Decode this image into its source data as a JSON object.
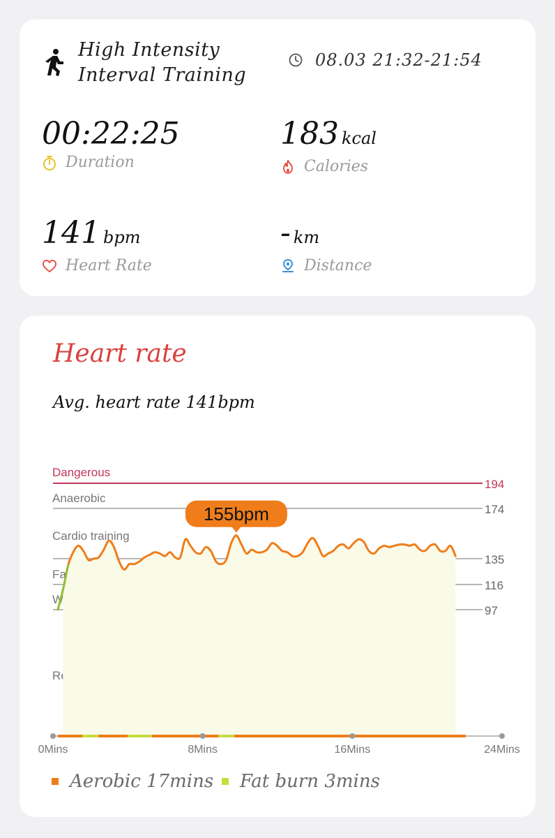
{
  "activity": {
    "title_line1": "High Intensity",
    "title_line2": "Interval Training",
    "time_range": "08.03 21:32-21:54"
  },
  "metrics": {
    "duration": {
      "value": "00:22:25",
      "label": "Duration"
    },
    "calories": {
      "value": "183",
      "unit": "kcal",
      "label": "Calories"
    },
    "heart_rate": {
      "value": "141",
      "unit": "bpm",
      "label": "Heart Rate"
    },
    "distance": {
      "value": "-",
      "unit": "km",
      "label": "Distance"
    }
  },
  "heart_rate_card": {
    "title": "Heart rate",
    "average_text": "Avg. heart rate 141bpm",
    "tooltip": "155bpm"
  },
  "colors": {
    "accent_red": "#d9423e",
    "dangerous": "#c2375b",
    "line_orange": "#ef7d1b",
    "line_green": "#8fc13a",
    "fill": "#fafae8",
    "aerobic": "#ef7d1b",
    "fat_burn": "#c8dc3c",
    "duration_icon": "#e8c227",
    "calories_icon": "#e5544b",
    "heart_icon": "#e5544b",
    "distance_icon": "#3a8fd9"
  },
  "icons": {
    "activity": "running-person-icon",
    "time": "clock-icon",
    "duration": "stopwatch-icon",
    "calories": "flame-icon",
    "heart_rate": "heart-icon",
    "distance": "location-pin-icon"
  },
  "legend": {
    "aerobic": "Aerobic 17mins",
    "fat_burn": "Fat burn 3mins"
  },
  "chart_data": {
    "type": "line",
    "xlabel": "",
    "ylabel": "",
    "x_ticks": [
      "0Mins",
      "8Mins",
      "16Mins",
      "24Mins"
    ],
    "xlim": [
      0,
      24
    ],
    "zones": [
      {
        "name": "Dangerous",
        "threshold": 194
      },
      {
        "name": "Anaerobic",
        "threshold": 174
      },
      {
        "name": "Cardio training",
        "threshold": null
      },
      {
        "name": "Fat burning",
        "threshold": 135
      },
      {
        "name": "Warm up",
        "threshold": 116
      },
      {
        "name": "Resting",
        "threshold": 97
      }
    ],
    "y_ticks": [
      194,
      174,
      135,
      116,
      97
    ],
    "series": [
      {
        "x": [
          0,
          0.3,
          0.6,
          0.9,
          1.2,
          1.5,
          1.8,
          2.1,
          2.4,
          2.7,
          3.0,
          3.3,
          3.6,
          3.9,
          4.2,
          4.5,
          4.8,
          5.1,
          5.4,
          5.7,
          6.0,
          6.3,
          6.6,
          6.9,
          7.2,
          7.5,
          7.8,
          8.1,
          8.4,
          8.7,
          9.0,
          9.3,
          9.6,
          9.9,
          10.2,
          10.5,
          10.8,
          11.1,
          11.4,
          11.7,
          12.0,
          12.3,
          12.6,
          12.9,
          13.2,
          13.5,
          13.8,
          14.1,
          14.4,
          14.7,
          15.0,
          15.3,
          15.6,
          15.9,
          16.2,
          16.5,
          16.8,
          17.1,
          17.4,
          17.7,
          18.0,
          18.3,
          18.6,
          18.9,
          19.2,
          19.5,
          19.8,
          20.1,
          20.4,
          20.7,
          21.0,
          21.3,
          21.6,
          21.9,
          22.2,
          22.5,
          22.8,
          23.1,
          23.4
        ],
        "values": [
          97,
          112,
          130,
          140,
          145,
          141,
          134,
          135,
          136,
          142,
          149,
          144,
          133,
          127,
          131,
          131,
          133,
          136,
          138,
          140,
          139,
          137,
          140,
          136,
          136,
          150,
          145,
          140,
          139,
          144,
          141,
          133,
          131,
          134,
          147,
          153,
          146,
          139,
          142,
          140,
          140,
          142,
          147,
          145,
          141,
          140,
          137,
          137,
          140,
          147,
          151,
          145,
          137,
          139,
          141,
          145,
          146,
          143,
          147,
          150,
          148,
          141,
          139,
          143,
          145,
          144,
          145,
          146,
          146,
          145,
          146,
          142,
          141,
          145,
          146,
          141,
          141,
          145,
          137
        ]
      }
    ]
  }
}
